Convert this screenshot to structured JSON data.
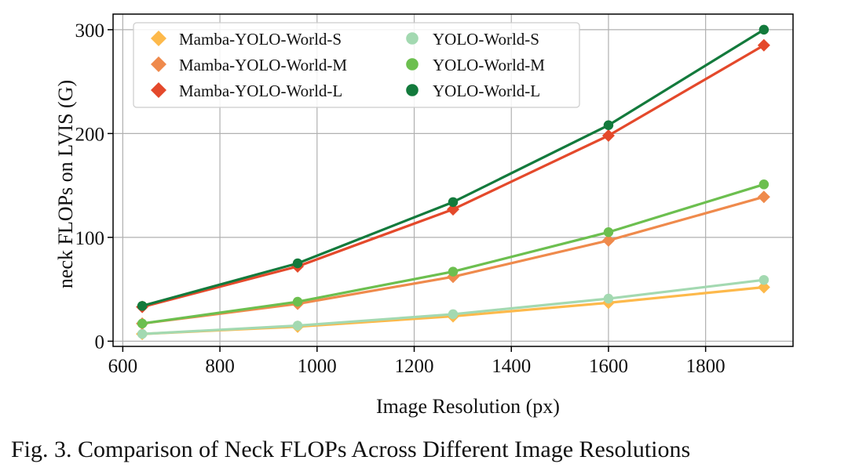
{
  "chart_data": {
    "type": "line",
    "title": "",
    "xlabel": "Image Resolution (px)",
    "ylabel": "neck FLOPs on LVIS (G)",
    "xlim": [
      580,
      1980
    ],
    "ylim": [
      -5,
      315
    ],
    "xticks": [
      600,
      800,
      1000,
      1200,
      1400,
      1600,
      1800
    ],
    "yticks": [
      0,
      100,
      200,
      300
    ],
    "grid": true,
    "legend_position": "top-left",
    "x": [
      640,
      960,
      1280,
      1600,
      1920
    ],
    "series": [
      {
        "name": "Mamba-YOLO-World-S",
        "marker": "diamond",
        "color": "#fdb94b",
        "values": [
          7,
          14,
          24,
          37,
          52
        ]
      },
      {
        "name": "Mamba-YOLO-World-M",
        "marker": "diamond",
        "color": "#ef8a4c",
        "values": [
          17,
          36,
          62,
          97,
          139
        ]
      },
      {
        "name": "Mamba-YOLO-World-L",
        "marker": "diamond",
        "color": "#e4492b",
        "values": [
          33,
          72,
          127,
          198,
          285
        ]
      },
      {
        "name": "YOLO-World-S",
        "marker": "circle",
        "color": "#a3d9b1",
        "values": [
          7,
          15,
          26,
          41,
          59
        ]
      },
      {
        "name": "YOLO-World-M",
        "marker": "circle",
        "color": "#6cbf4f",
        "values": [
          17,
          38,
          67,
          105,
          151
        ]
      },
      {
        "name": "YOLO-World-L",
        "marker": "circle",
        "color": "#137a3c",
        "values": [
          34,
          75,
          134,
          208,
          300
        ]
      }
    ]
  },
  "caption": "Fig. 3.  Comparison of Neck FLOPs Across Different Image Resolutions"
}
